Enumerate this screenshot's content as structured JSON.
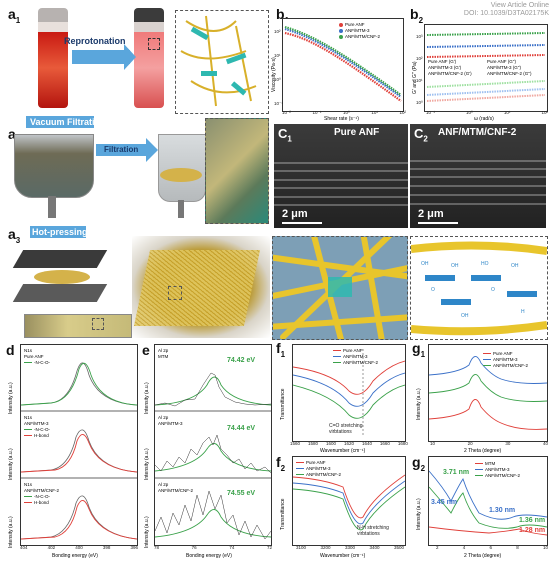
{
  "watermark": {
    "line1": "View Article Online",
    "line2": "DOI: 10.1039/D3TA02175K"
  },
  "panel_labels": {
    "a1": "a",
    "a1s": "1",
    "a2": "a",
    "a2s": "2",
    "a3": "a",
    "a3s": "3",
    "b1": "b",
    "b1s": "1",
    "b2": "b",
    "b2s": "2",
    "c1": "C",
    "c1s": "1",
    "c2": "C",
    "c2s": "2",
    "d": "d",
    "e": "e",
    "f1": "f",
    "f1s": "1",
    "f2": "f",
    "f2s": "2",
    "g1": "g",
    "g1s": "1",
    "g2": "g",
    "g2s": "2"
  },
  "arrows": {
    "reprotonation": "Reprotonation",
    "vacuum": "Vacuum Filtration",
    "filtration": "Filtration",
    "hotpress": "Hot-pressing"
  },
  "sem": {
    "c1_title": "Pure ANF",
    "c2_title": "ANF/MTM/CNF-2",
    "scale": "2 μm"
  },
  "colors": {
    "pure": "#e0403a",
    "mtm3": "#3a70c8",
    "cnf2": "#3aa14a",
    "yellow": "#d8b02a",
    "teal": "#2eb8b0",
    "blue_arrow": "#5aa6dc"
  },
  "b1": {
    "ylabel": "Viscosity (Pa·s)",
    "xlabel": "Shear rate (s⁻¹)",
    "legend": [
      "Pure ANF",
      "ANF/MTM-3",
      "ANF/MTM/CNF-2"
    ],
    "yticks": [
      "10²",
      "10¹",
      "10⁰",
      "10⁻¹"
    ],
    "xticks": [
      "10⁻²",
      "10⁻¹",
      "10⁰",
      "10¹",
      "10²"
    ]
  },
  "b2": {
    "ylabel": "G' and G'' (Pa)",
    "xlabel": "ω (rad/s)",
    "legend": [
      "Pure ANF (G')",
      "ANF/MTM-3 (G')",
      "ANF/MTM/CNF-2 (G')",
      "Pure ANF (G'')",
      "ANF/MTM-3 (G'')",
      "ANF/MTM/CNF-2 (G'')"
    ],
    "yticks": [
      "10³",
      "10²",
      "10¹",
      "10⁰"
    ],
    "xticks": [
      "10⁻¹",
      "10⁰",
      "10¹",
      "10²"
    ]
  },
  "d": {
    "ylabel": "Intensity (a.u.)",
    "xlabel": "Bonding energy (eV)",
    "xticks": [
      "404",
      "402",
      "400",
      "398",
      "396"
    ],
    "sub": [
      {
        "title": "N1s",
        "name": "Pure ANF",
        "items": [
          "-N-C-O-"
        ]
      },
      {
        "title": "N1s",
        "name": "ANF/MTM-3",
        "items": [
          "-N-C-O-",
          "H-bond"
        ]
      },
      {
        "title": "N1s",
        "name": "ANF/MTM/CNF-2",
        "items": [
          "-N-C-O-",
          "H-bond"
        ]
      }
    ]
  },
  "e": {
    "ylabel": "Intensity (a.u.)",
    "xlabel": "Bonding energy (eV)",
    "xticks": [
      "78",
      "76",
      "74",
      "72"
    ],
    "sub": [
      {
        "title": "Al 2p",
        "name": "MTM",
        "value": "74.42 eV"
      },
      {
        "title": "Al 2p",
        "name": "ANF/MTM-3",
        "value": "74.44 eV"
      },
      {
        "title": "Al 2p",
        "name": "ANF/MTM/CNF-2",
        "value": "74.55 eV"
      }
    ]
  },
  "f1": {
    "ylabel": "Transmittance",
    "xlabel": "Wavenumber (cm⁻¹)",
    "legend": [
      "Pure ANF",
      "ANF/MTM-3",
      "ANF/MTM/CNF-2"
    ],
    "annotation": "C=O stretching virbtations",
    "xticks": [
      "1560",
      "1580",
      "1600",
      "1620",
      "1640",
      "1660",
      "1680"
    ]
  },
  "f2": {
    "ylabel": "Transmittance",
    "xlabel": "Wavenumber (cm⁻¹)",
    "legend": [
      "Pure ANF",
      "ANF/MTM-3",
      "ANF/MTM/CNF-2"
    ],
    "annotation": "N-H stretching virbtations",
    "xticks": [
      "3100",
      "3200",
      "3300",
      "3400",
      "3500"
    ]
  },
  "g1": {
    "ylabel": "Intensity (a.u.)",
    "xlabel": "2 Theta (degree)",
    "legend": [
      "Pure ANF",
      "ANF/MTM-3",
      "ANF/MTM/CNF-2"
    ],
    "xticks": [
      "10",
      "20",
      "30",
      "40"
    ]
  },
  "g2": {
    "ylabel": "Intensity (a.u.)",
    "xlabel": "2 Theta (degree)",
    "legend": [
      "MTM",
      "ANF/MTM-3",
      "ANF/MTM/CNF-2"
    ],
    "labels": [
      "3.71 nm",
      "3.45 nm",
      "1.30 nm",
      "1.36 nm",
      "1.28 nm"
    ],
    "xticks": [
      "2",
      "4",
      "6",
      "8",
      "10"
    ]
  }
}
